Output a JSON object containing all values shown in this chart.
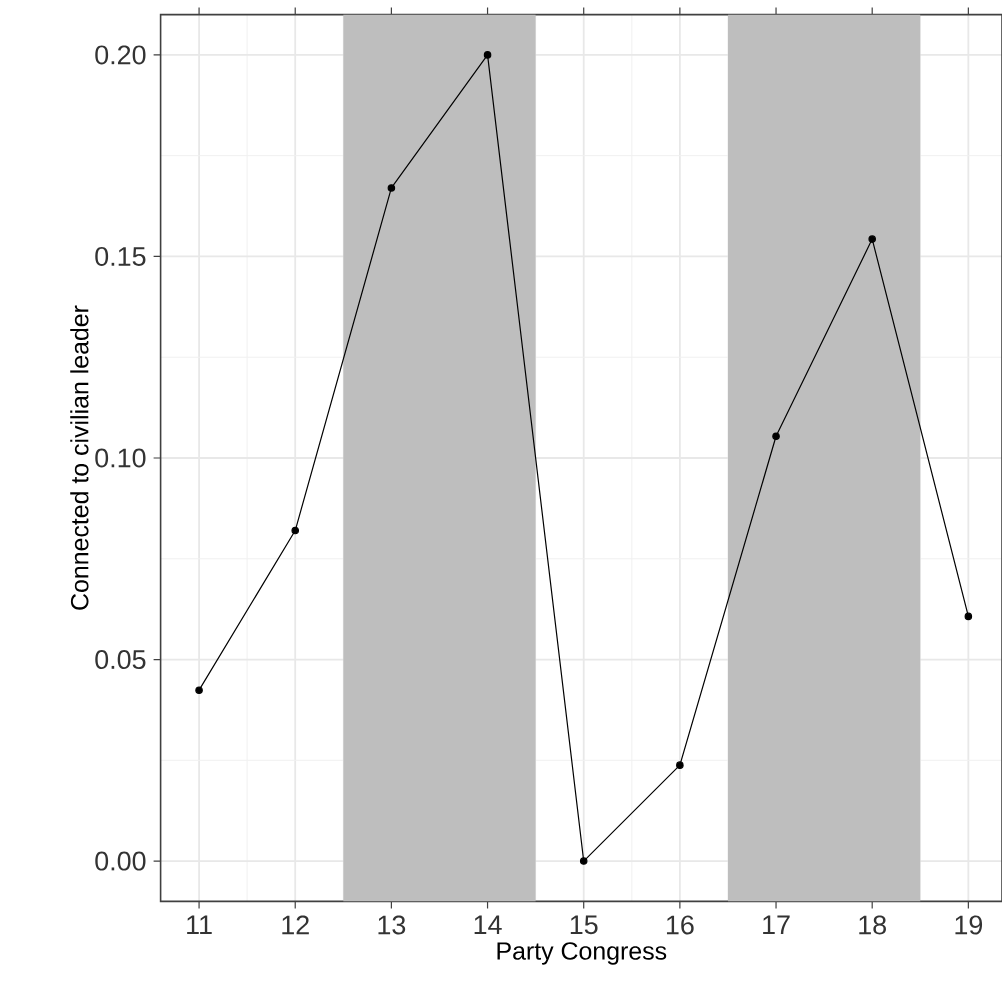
{
  "chart_data": {
    "type": "line",
    "xlabel": "Party Congress",
    "ylabel": "Connected to civilian leader",
    "x": [
      11,
      12,
      13,
      14,
      15,
      16,
      17,
      18,
      19
    ],
    "series": [
      {
        "color": "#000000",
        "values": [
          0.0424,
          0.082,
          0.167,
          0.2,
          0.0,
          0.0238,
          0.1054,
          0.1543,
          0.0607
        ]
      }
    ],
    "xlim": [
      10.6,
      19.35
    ],
    "ylim": [
      -0.01,
      0.21
    ],
    "xticks": [
      11,
      12,
      13,
      14,
      15,
      16,
      17,
      18,
      19
    ],
    "yticks": [
      {
        "value": 0,
        "label": "0.00"
      },
      {
        "value": 0.05,
        "label": "0.05"
      },
      {
        "value": 0.1,
        "label": "0.10"
      },
      {
        "value": 0.15,
        "label": "0.15"
      },
      {
        "value": 0.2,
        "label": "0.20"
      }
    ],
    "bands": [
      {
        "axis": "x",
        "from": 12.5,
        "to": 14.5,
        "color": "#bebebe"
      },
      {
        "axis": "x",
        "from": 16.5,
        "to": 18.5,
        "color": "#bebebe"
      }
    ],
    "grid": true,
    "marker": "circle",
    "line_style": "solid"
  }
}
